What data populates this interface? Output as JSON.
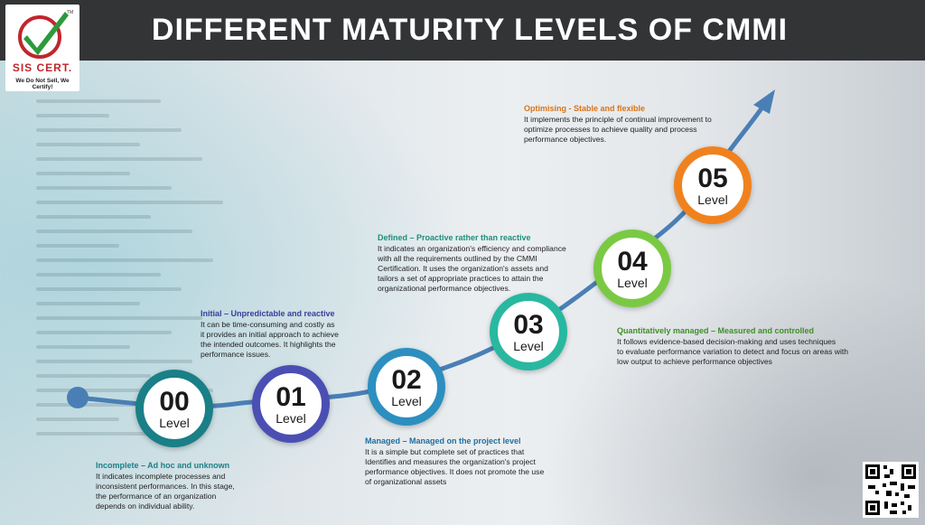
{
  "header": {
    "title": "DIFFERENT MATURITY LEVELS OF CMMI"
  },
  "logo": {
    "brand": "SIS CERT.",
    "tagline": "We Do Not Sell, We Certify!",
    "tm": "TM"
  },
  "colors": {
    "header_bg": "#333436",
    "arrow": "#4a7fb5",
    "level0": "#1a7f87",
    "level1": "#4b4fb3",
    "level2": "#2c8fc0",
    "level3": "#28b8a0",
    "level4": "#7ac943",
    "level5": "#f0821e"
  },
  "levels": [
    {
      "number": "00",
      "word": "Level",
      "title": "Incomplete – Ad hoc and unknown",
      "title_color": "#1a7f87",
      "lines": [
        "It indicates incomplete processes and",
        "inconsistent performances. In this stage,",
        "the performance of an organization",
        "depends on individual ability."
      ]
    },
    {
      "number": "01",
      "word": "Level",
      "title": "Initial – Unpredictable and reactive",
      "title_color": "#3a3d9a",
      "lines": [
        "It can be time-consuming and costly as",
        "it provides an initial approach to achieve",
        "the intended outcomes. It highlights the",
        "performance issues."
      ]
    },
    {
      "number": "02",
      "word": "Level",
      "title": "Managed – Managed on the project level",
      "title_color": "#1f6f9c",
      "lines": [
        "It is a simple but complete set of practices that",
        "Identifies and measures the organization's project",
        "performance objectives. It does not promote the use",
        "of organizational assets"
      ]
    },
    {
      "number": "03",
      "word": "Level",
      "title": "Defined – Proactive rather than reactive",
      "title_color": "#1d8f7a",
      "lines": [
        "It indicates an organization's efficiency and compliance",
        "with all the requirements outlined by the CMMI",
        "Certification. It uses the organization's assets and",
        "tailors a set of appropriate practices to attain the",
        "organizational performance objectives."
      ]
    },
    {
      "number": "04",
      "word": "Level",
      "title": "Quantitatively managed – Measured and controlled",
      "title_color": "#3f8f2a",
      "lines": [
        "It follows evidence-based decision-making and uses techniques",
        "to evaluate performance variation to detect and focus on areas with",
        "low output to achieve performance objectives"
      ]
    },
    {
      "number": "05",
      "word": "Level",
      "title": "Optimising - Stable and flexible",
      "title_color": "#d9731a",
      "lines": [
        "It implements the principle of continual improvement to",
        "optimize processes to achieve quality and process",
        "performance objectives."
      ]
    }
  ]
}
